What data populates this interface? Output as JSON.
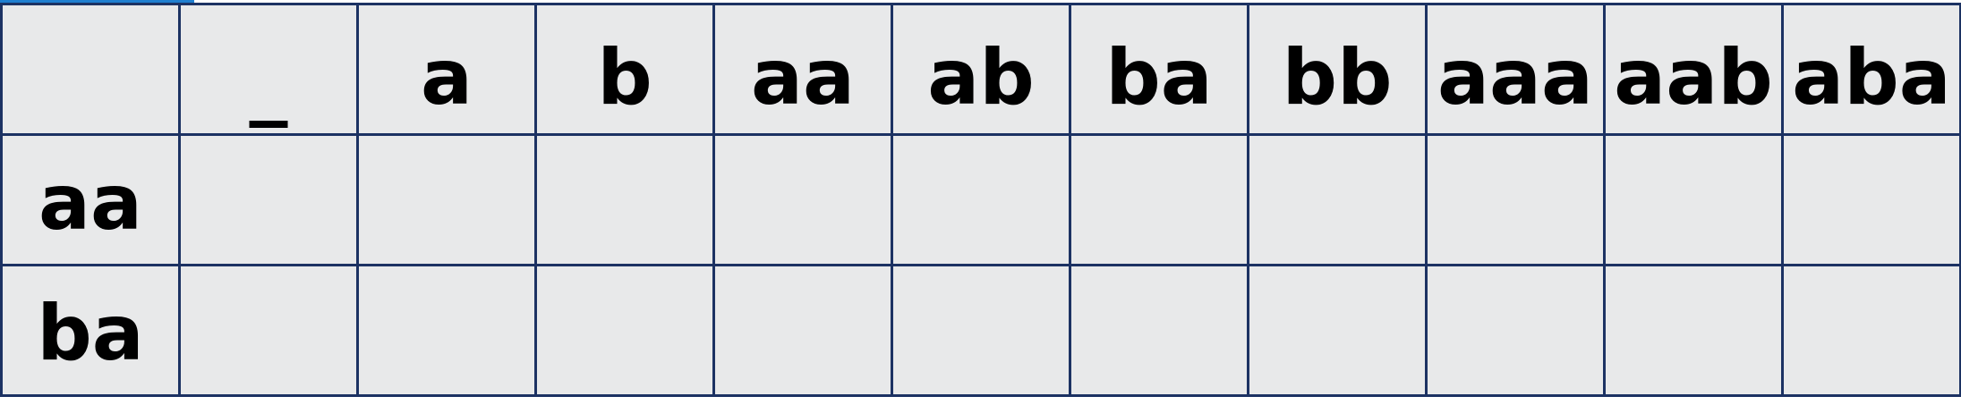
{
  "table": {
    "corner": "",
    "columns": [
      "_",
      "a",
      "b",
      "aa",
      "ab",
      "ba",
      "bb",
      "aaa",
      "aab",
      "aba"
    ],
    "rows": [
      {
        "label": "aa",
        "cells": [
          "",
          "",
          "",
          "",
          "",
          "",
          "",
          "",
          "",
          ""
        ]
      },
      {
        "label": "ba",
        "cells": [
          "",
          "",
          "",
          "",
          "",
          "",
          "",
          "",
          "",
          ""
        ]
      }
    ]
  },
  "colors": {
    "grid_line": "#1c3263",
    "cell_background": "#e8e9ea",
    "selection_bar": "#1f7fd0"
  }
}
